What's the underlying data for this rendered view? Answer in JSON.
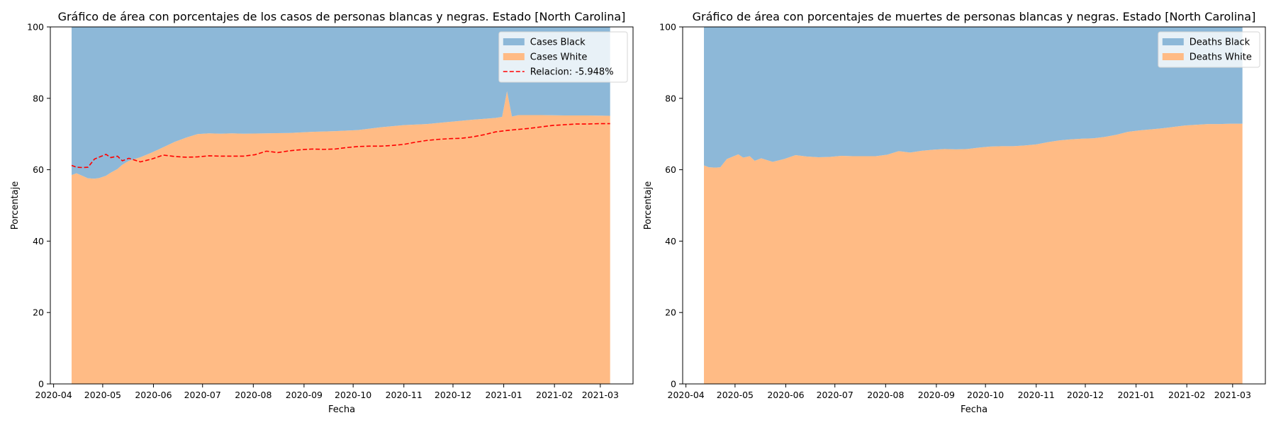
{
  "chart_data": [
    {
      "type": "area",
      "title": "Gráfico de área con porcentajes de los casos de personas blancas y negras. Estado [North Carolina]",
      "xlabel": "Fecha",
      "ylabel": "Porcentaje",
      "xlim": [
        "2020-03-30",
        "2021-03-21"
      ],
      "ylim": [
        0,
        100
      ],
      "x_ticks": [
        "2020-04",
        "2020-05",
        "2020-06",
        "2020-07",
        "2020-08",
        "2020-09",
        "2020-10",
        "2020-11",
        "2020-12",
        "2021-01",
        "2021-02",
        "2021-03"
      ],
      "y_ticks": [
        0,
        20,
        40,
        60,
        80,
        100
      ],
      "grid": false,
      "legend_position": "top-right",
      "stacked": true,
      "series": [
        {
          "name": "Cases White",
          "kind": "area",
          "color": "#ffbb85",
          "x": [
            "2020-04-12",
            "2020-04-15",
            "2020-04-19",
            "2020-04-22",
            "2020-04-26",
            "2020-04-29",
            "2020-05-03",
            "2020-05-06",
            "2020-05-10",
            "2020-05-13",
            "2020-05-17",
            "2020-05-24",
            "2020-05-31",
            "2020-06-07",
            "2020-06-14",
            "2020-06-21",
            "2020-06-28",
            "2020-07-05",
            "2020-07-12",
            "2020-07-19",
            "2020-07-26",
            "2020-08-09",
            "2020-08-23",
            "2020-09-06",
            "2020-09-20",
            "2020-10-04",
            "2020-10-18",
            "2020-11-01",
            "2020-11-15",
            "2020-11-29",
            "2020-12-13",
            "2020-12-27",
            "2020-12-31",
            "2021-01-03",
            "2021-01-06",
            "2021-01-10",
            "2021-01-24",
            "2021-02-07",
            "2021-02-21",
            "2021-03-07"
          ],
          "values": [
            58.5,
            59,
            58.2,
            57.6,
            57.5,
            57.7,
            58.3,
            59.2,
            60.2,
            61.4,
            62.5,
            63.5,
            64.8,
            66.3,
            67.8,
            69,
            70,
            70.2,
            70.1,
            70.2,
            70.1,
            70.2,
            70.3,
            70.6,
            70.8,
            71.1,
            71.9,
            72.5,
            72.8,
            73.4,
            74,
            74.5,
            74.8,
            82,
            74.9,
            75.3,
            75.3,
            75.2,
            75.2,
            75.1
          ]
        },
        {
          "name": "Cases Black",
          "kind": "area",
          "color": "#8db8d8",
          "x": [
            "2020-04-12",
            "2020-04-15",
            "2020-04-19",
            "2020-04-22",
            "2020-04-26",
            "2020-04-29",
            "2020-05-03",
            "2020-05-06",
            "2020-05-10",
            "2020-05-13",
            "2020-05-17",
            "2020-05-24",
            "2020-05-31",
            "2020-06-07",
            "2020-06-14",
            "2020-06-21",
            "2020-06-28",
            "2020-07-05",
            "2020-07-12",
            "2020-07-19",
            "2020-07-26",
            "2020-08-09",
            "2020-08-23",
            "2020-09-06",
            "2020-09-20",
            "2020-10-04",
            "2020-10-18",
            "2020-11-01",
            "2020-11-15",
            "2020-11-29",
            "2020-12-13",
            "2020-12-27",
            "2020-12-31",
            "2021-01-03",
            "2021-01-06",
            "2021-01-10",
            "2021-01-24",
            "2021-02-07",
            "2021-02-21",
            "2021-03-07"
          ],
          "values": [
            41.5,
            41,
            41.8,
            42.4,
            42.5,
            42.3,
            41.7,
            40.8,
            39.8,
            38.6,
            37.5,
            36.5,
            35.2,
            33.7,
            32.2,
            31,
            30,
            29.8,
            29.9,
            29.8,
            29.9,
            29.8,
            29.7,
            29.4,
            29.2,
            28.9,
            28.1,
            27.5,
            27.2,
            26.6,
            26,
            25.5,
            25.2,
            18,
            25.1,
            24.7,
            24.7,
            24.8,
            24.8,
            24.9
          ]
        },
        {
          "name": "Relacion: -5.948%",
          "kind": "line",
          "style": "dashed",
          "color": "#ff0000",
          "x": [
            "2020-04-12",
            "2020-04-15",
            "2020-04-19",
            "2020-04-22",
            "2020-04-26",
            "2020-05-03",
            "2020-05-06",
            "2020-05-10",
            "2020-05-13",
            "2020-05-17",
            "2020-05-24",
            "2020-05-31",
            "2020-06-07",
            "2020-06-14",
            "2020-06-21",
            "2020-06-28",
            "2020-07-05",
            "2020-07-12",
            "2020-07-19",
            "2020-07-26",
            "2020-08-02",
            "2020-08-09",
            "2020-08-16",
            "2020-08-23",
            "2020-08-30",
            "2020-09-06",
            "2020-09-13",
            "2020-09-20",
            "2020-09-27",
            "2020-10-04",
            "2020-10-11",
            "2020-10-18",
            "2020-10-25",
            "2020-11-01",
            "2020-11-08",
            "2020-11-15",
            "2020-11-22",
            "2020-11-29",
            "2020-12-06",
            "2020-12-13",
            "2020-12-20",
            "2020-12-27",
            "2021-01-03",
            "2021-01-10",
            "2021-01-17",
            "2021-01-24",
            "2021-01-31",
            "2021-02-07",
            "2021-02-14",
            "2021-02-21",
            "2021-02-28",
            "2021-03-07"
          ],
          "values": [
            61.2,
            60.7,
            60.6,
            60.7,
            63,
            64.3,
            63.4,
            63.8,
            62.5,
            63.2,
            62.2,
            63,
            64.1,
            63.7,
            63.5,
            63.6,
            63.9,
            63.8,
            63.8,
            63.8,
            64.2,
            65.2,
            64.8,
            65.3,
            65.6,
            65.8,
            65.7,
            65.8,
            66.2,
            66.5,
            66.6,
            66.6,
            66.8,
            67.1,
            67.7,
            68.2,
            68.5,
            68.7,
            68.8,
            69.2,
            69.8,
            70.6,
            71,
            71.3,
            71.6,
            72,
            72.4,
            72.6,
            72.8,
            72.8,
            72.9,
            72.9
          ]
        }
      ]
    },
    {
      "type": "area",
      "title": "Gráfico de área con porcentajes de muertes de personas blancas y negras. Estado [North Carolina]",
      "xlabel": "Fecha",
      "ylabel": "Porcentaje",
      "xlim": [
        "2020-03-30",
        "2021-03-21"
      ],
      "ylim": [
        0,
        100
      ],
      "x_ticks": [
        "2020-04",
        "2020-05",
        "2020-06",
        "2020-07",
        "2020-08",
        "2020-09",
        "2020-10",
        "2020-11",
        "2020-12",
        "2021-01",
        "2021-02",
        "2021-03"
      ],
      "y_ticks": [
        0,
        20,
        40,
        60,
        80,
        100
      ],
      "grid": false,
      "legend_position": "top-right",
      "stacked": true,
      "series": [
        {
          "name": "Deaths White",
          "kind": "area",
          "color": "#ffbb85",
          "x": [
            "2020-04-12",
            "2020-04-15",
            "2020-04-19",
            "2020-04-22",
            "2020-04-26",
            "2020-05-03",
            "2020-05-06",
            "2020-05-10",
            "2020-05-13",
            "2020-05-17",
            "2020-05-24",
            "2020-05-31",
            "2020-06-07",
            "2020-06-14",
            "2020-06-21",
            "2020-06-28",
            "2020-07-05",
            "2020-07-12",
            "2020-07-19",
            "2020-07-26",
            "2020-08-02",
            "2020-08-09",
            "2020-08-16",
            "2020-08-23",
            "2020-08-30",
            "2020-09-06",
            "2020-09-13",
            "2020-09-20",
            "2020-09-27",
            "2020-10-04",
            "2020-10-11",
            "2020-10-18",
            "2020-10-25",
            "2020-11-01",
            "2020-11-08",
            "2020-11-15",
            "2020-11-22",
            "2020-11-29",
            "2020-12-06",
            "2020-12-13",
            "2020-12-20",
            "2020-12-27",
            "2021-01-03",
            "2021-01-10",
            "2021-01-17",
            "2021-01-24",
            "2021-01-31",
            "2021-02-07",
            "2021-02-14",
            "2021-02-21",
            "2021-02-28",
            "2021-03-07"
          ],
          "values": [
            61.2,
            60.7,
            60.6,
            60.7,
            63,
            64.3,
            63.4,
            63.8,
            62.5,
            63.2,
            62.2,
            63,
            64.1,
            63.7,
            63.5,
            63.6,
            63.9,
            63.8,
            63.8,
            63.8,
            64.2,
            65.2,
            64.8,
            65.3,
            65.6,
            65.8,
            65.7,
            65.8,
            66.2,
            66.5,
            66.6,
            66.6,
            66.8,
            67.1,
            67.7,
            68.2,
            68.5,
            68.7,
            68.8,
            69.2,
            69.8,
            70.6,
            71,
            71.3,
            71.6,
            72,
            72.4,
            72.6,
            72.8,
            72.8,
            72.9,
            72.9
          ]
        },
        {
          "name": "Deaths Black",
          "kind": "area",
          "color": "#8db8d8",
          "x": [
            "2020-04-12",
            "2020-04-15",
            "2020-04-19",
            "2020-04-22",
            "2020-04-26",
            "2020-05-03",
            "2020-05-06",
            "2020-05-10",
            "2020-05-13",
            "2020-05-17",
            "2020-05-24",
            "2020-05-31",
            "2020-06-07",
            "2020-06-14",
            "2020-06-21",
            "2020-06-28",
            "2020-07-05",
            "2020-07-12",
            "2020-07-19",
            "2020-07-26",
            "2020-08-02",
            "2020-08-09",
            "2020-08-16",
            "2020-08-23",
            "2020-08-30",
            "2020-09-06",
            "2020-09-13",
            "2020-09-20",
            "2020-09-27",
            "2020-10-04",
            "2020-10-11",
            "2020-10-18",
            "2020-10-25",
            "2020-11-01",
            "2020-11-08",
            "2020-11-15",
            "2020-11-22",
            "2020-11-29",
            "2020-12-06",
            "2020-12-13",
            "2020-12-20",
            "2020-12-27",
            "2021-01-03",
            "2021-01-10",
            "2021-01-17",
            "2021-01-24",
            "2021-01-31",
            "2021-02-07",
            "2021-02-14",
            "2021-02-21",
            "2021-02-28",
            "2021-03-07"
          ],
          "values": [
            38.8,
            39.3,
            39.4,
            39.3,
            37,
            35.7,
            36.6,
            36.2,
            37.5,
            36.8,
            37.8,
            37,
            35.9,
            36.3,
            36.5,
            36.4,
            36.1,
            36.2,
            36.2,
            36.2,
            35.8,
            34.8,
            35.2,
            34.7,
            34.4,
            34.2,
            34.3,
            34.2,
            33.8,
            33.5,
            33.4,
            33.4,
            33.2,
            32.9,
            32.3,
            31.8,
            31.5,
            31.3,
            31.2,
            30.8,
            30.2,
            29.4,
            29,
            28.7,
            28.4,
            28,
            27.6,
            27.4,
            27.2,
            27.2,
            27.1,
            27.1
          ]
        }
      ]
    }
  ]
}
